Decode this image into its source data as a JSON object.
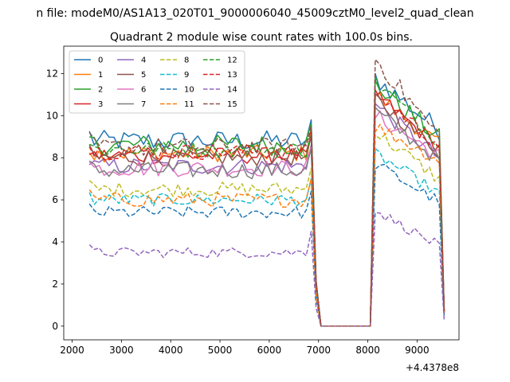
{
  "figure": {
    "suptitle": "n file: modeM0/AS1A13_020T01_9000006040_45009cztM0_level2_quad_clean",
    "title": "Quadrant 2 module wise count rates with 100.0s bins.",
    "offset_text": "+4.4378e8"
  },
  "chart_data": {
    "type": "line",
    "title": "Quadrant 2 module wise count rates with 100.0s bins.",
    "xlabel": "",
    "ylabel": "",
    "x_offset_label": "+4.4378e8",
    "xlim": [
      1830,
      9850
    ],
    "ylim": [
      -0.65,
      13.3
    ],
    "xticks": [
      2000,
      3000,
      4000,
      5000,
      6000,
      7000,
      8000,
      9000
    ],
    "yticks": [
      0,
      2,
      4,
      6,
      8,
      10,
      12
    ],
    "grid": false,
    "legend_position": "upper-left",
    "legend_columns": 4,
    "x": {
      "start": 2350,
      "step": 100,
      "count": 73,
      "gap_start": 6950,
      "gap_end": 8050,
      "edge_low": 7000,
      "edge_high": 8100,
      "high_end": 9450,
      "last_x": 9550
    },
    "series": [
      {
        "name": "0",
        "color": "#1f77b4",
        "dash": "solid",
        "pre_level": 8.8,
        "post_peak": 11.8,
        "post_end": 9.3,
        "noise": 0.5
      },
      {
        "name": "1",
        "color": "#ff7f0e",
        "dash": "solid",
        "pre_level": 8.2,
        "post_peak": 11.0,
        "post_end": 8.6,
        "noise": 0.4
      },
      {
        "name": "2",
        "color": "#2ca02c",
        "dash": "solid",
        "pre_level": 8.6,
        "post_peak": 11.5,
        "post_end": 8.9,
        "noise": 0.5
      },
      {
        "name": "3",
        "color": "#d62728",
        "dash": "solid",
        "pre_level": 8.1,
        "post_peak": 11.0,
        "post_end": 8.5,
        "noise": 0.4
      },
      {
        "name": "4",
        "color": "#9467bd",
        "dash": "solid",
        "pre_level": 7.6,
        "post_peak": 10.5,
        "post_end": 8.0,
        "noise": 0.4
      },
      {
        "name": "5",
        "color": "#8c564b",
        "dash": "solid",
        "pre_level": 8.0,
        "post_peak": 10.8,
        "post_end": 8.3,
        "noise": 0.4
      },
      {
        "name": "6",
        "color": "#e377c2",
        "dash": "solid",
        "pre_level": 7.5,
        "post_peak": 10.0,
        "post_end": 8.1,
        "noise": 0.4
      },
      {
        "name": "7",
        "color": "#7f7f7f",
        "dash": "solid",
        "pre_level": 7.4,
        "post_peak": 10.2,
        "post_end": 7.9,
        "noise": 0.4
      },
      {
        "name": "8",
        "color": "#bcbd22",
        "dash": "dashed",
        "pre_level": 6.5,
        "post_peak": 9.2,
        "post_end": 7.0,
        "noise": 0.35
      },
      {
        "name": "9",
        "color": "#17becf",
        "dash": "dashed",
        "pre_level": 6.0,
        "post_peak": 8.2,
        "post_end": 6.3,
        "noise": 0.3
      },
      {
        "name": "10",
        "color": "#1f77b4",
        "dash": "dashed",
        "pre_level": 5.4,
        "post_peak": 7.7,
        "post_end": 5.9,
        "noise": 0.3
      },
      {
        "name": "11",
        "color": "#ff7f0e",
        "dash": "dashed",
        "pre_level": 6.0,
        "post_peak": 9.5,
        "post_end": 7.9,
        "noise": 0.35
      },
      {
        "name": "12",
        "color": "#2ca02c",
        "dash": "dashed",
        "pre_level": 8.4,
        "post_peak": 11.6,
        "post_end": 8.8,
        "noise": 0.4
      },
      {
        "name": "13",
        "color": "#d62728",
        "dash": "dashed",
        "pre_level": 8.3,
        "post_peak": 11.1,
        "post_end": 8.6,
        "noise": 0.4
      },
      {
        "name": "14",
        "color": "#9467bd",
        "dash": "dashed",
        "pre_level": 3.5,
        "post_peak": 5.5,
        "post_end": 3.8,
        "noise": 0.25
      },
      {
        "name": "15",
        "color": "#8c564b",
        "dash": "dashed",
        "pre_level": 8.5,
        "post_peak": 12.7,
        "post_end": 9.0,
        "noise": 0.45
      }
    ]
  }
}
